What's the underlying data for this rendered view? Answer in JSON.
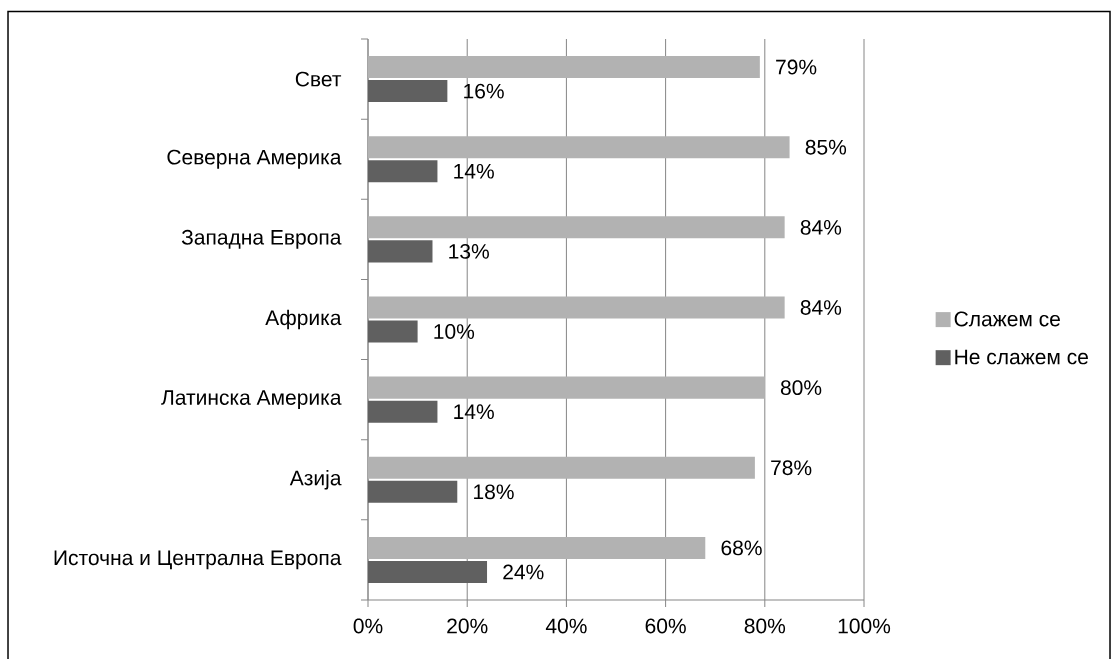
{
  "chart_data": {
    "type": "bar",
    "orientation": "horizontal",
    "categories": [
      "Свет",
      "Северна Америка",
      "Западна Европа",
      "Африка",
      "Латинска Америка",
      "Азија",
      "Источна и Централна Европа"
    ],
    "series": [
      {
        "name": "Слажем се",
        "color": "#b2b2b2",
        "values": [
          79,
          85,
          84,
          84,
          80,
          78,
          68
        ],
        "value_labels": [
          "79%",
          "85%",
          "84%",
          "84%",
          "80%",
          "78%",
          "68%"
        ]
      },
      {
        "name": "Не слажем се",
        "color": "#606060",
        "values": [
          16,
          14,
          13,
          10,
          14,
          18,
          24
        ],
        "value_labels": [
          "16%",
          "14%",
          "13%",
          "10%",
          "14%",
          "18%",
          "24%"
        ]
      }
    ],
    "xlim": [
      0,
      100
    ],
    "xticks": [
      {
        "value": 0,
        "label": "0%"
      },
      {
        "value": 20,
        "label": "20%"
      },
      {
        "value": 40,
        "label": "40%"
      },
      {
        "value": 60,
        "label": "60%"
      },
      {
        "value": 80,
        "label": "80%"
      },
      {
        "value": 100,
        "label": "100%"
      }
    ],
    "grid": "x",
    "legend": "right"
  }
}
